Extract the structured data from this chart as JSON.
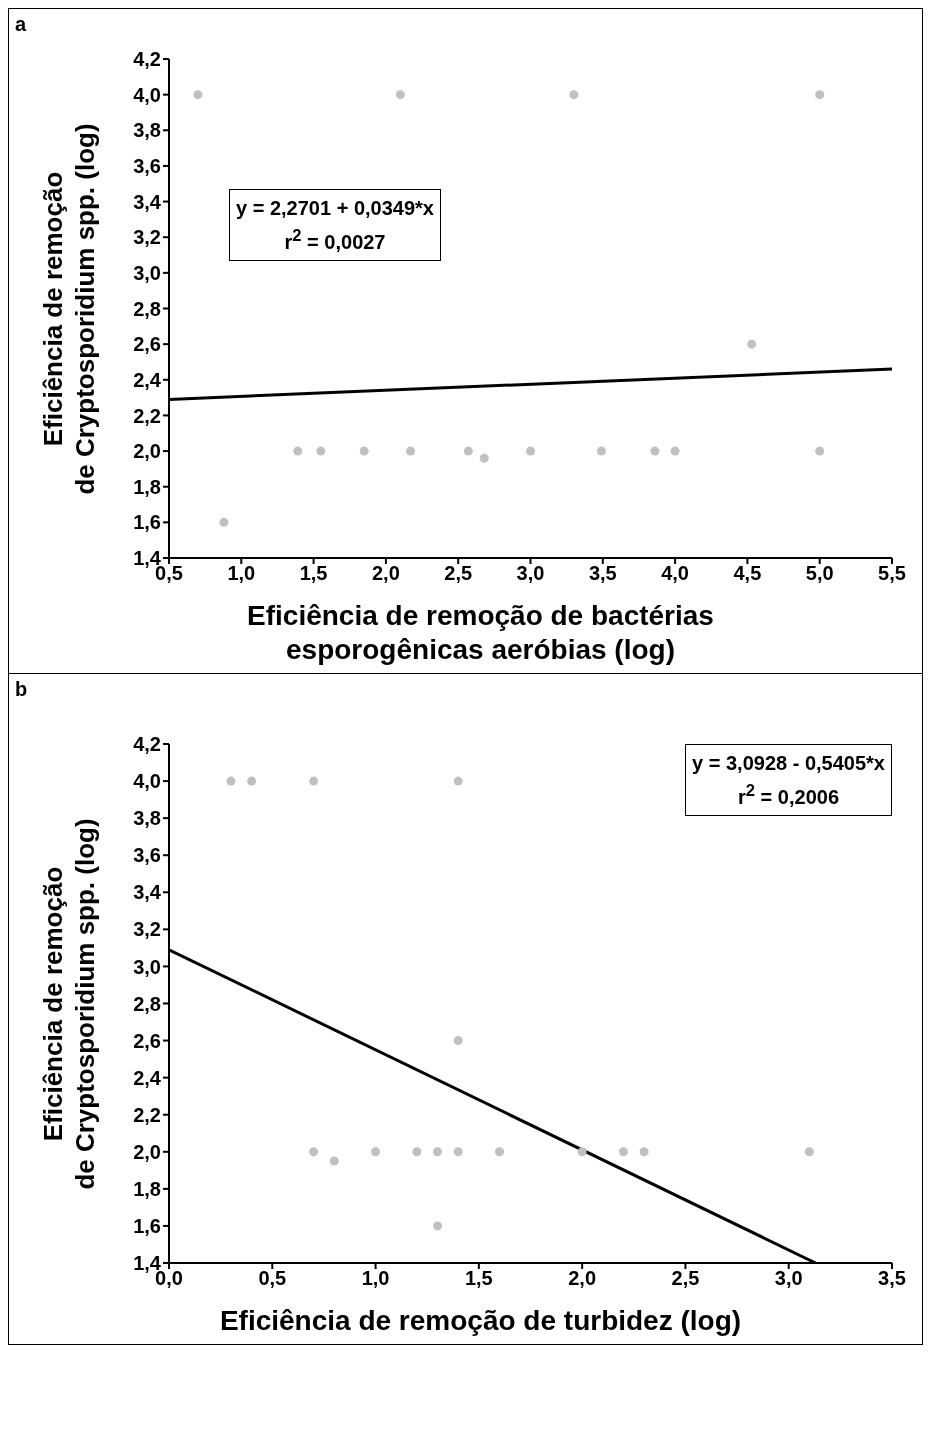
{
  "chart_data": [
    {
      "type": "scatter",
      "title": "a",
      "xlabel": "Eficiência de remoção de bactérias esporogênicas aeróbias (log)",
      "ylabel": "Eficiência de remoção de Cryptosporidium spp. (log)",
      "grid": false,
      "legend": false,
      "xlim": [
        0.5,
        5.5
      ],
      "xticks": [
        {
          "value": 0.5,
          "label": "0,5"
        },
        {
          "value": 1,
          "label": "1,0"
        },
        {
          "value": 1.5,
          "label": "1,5"
        },
        {
          "value": 2,
          "label": "2,0"
        },
        {
          "value": 2.5,
          "label": "2,5"
        },
        {
          "value": 3,
          "label": "3,0"
        },
        {
          "value": 3.5,
          "label": "3,5"
        },
        {
          "value": 4,
          "label": "4,0"
        },
        {
          "value": 4.5,
          "label": "4,5"
        },
        {
          "value": 5,
          "label": "5,0"
        },
        {
          "value": 5.5,
          "label": "5,5"
        }
      ],
      "ylim": [
        1.4,
        4.2
      ],
      "yticks": [
        {
          "value": 1.4,
          "label": "1,4"
        },
        {
          "value": 1.6,
          "label": "1,6"
        },
        {
          "value": 1.8,
          "label": "1,8"
        },
        {
          "value": 2,
          "label": "2,0"
        },
        {
          "value": 2.2,
          "label": "2,2"
        },
        {
          "value": 2.4,
          "label": "2,4"
        },
        {
          "value": 2.6,
          "label": "2,6"
        },
        {
          "value": 2.8,
          "label": "2,8"
        },
        {
          "value": 3,
          "label": "3,0"
        },
        {
          "value": 3.2,
          "label": "3,2"
        },
        {
          "value": 3.4,
          "label": "3,4"
        },
        {
          "value": 3.6,
          "label": "3,6"
        },
        {
          "value": 3.8,
          "label": "3,8"
        },
        {
          "value": 4,
          "label": "4,0"
        },
        {
          "value": 4.2,
          "label": "4,2"
        }
      ],
      "series": [
        {
          "marker": "circle",
          "color": "#c0c0c0",
          "x": [
            0.7,
            2.1,
            3.3,
            5.0,
            4.53,
            0.88,
            1.39,
            1.55,
            1.85,
            2.17,
            2.57,
            2.68,
            3.0,
            3.49,
            3.86,
            4.0,
            5.0
          ],
          "values": [
            4.0,
            4.0,
            4.0,
            4.0,
            2.6,
            1.6,
            2.0,
            2.0,
            2.0,
            2.0,
            2.0,
            1.96,
            2.0,
            2.0,
            2.0,
            2.0,
            2.0
          ]
        },
        {
          "type": "line",
          "color": "#000000",
          "x": [
            0.5,
            5.5
          ],
          "values": [
            2.29,
            2.46
          ]
        }
      ],
      "annotations": [
        "y = 2,2701 + 0,0349*x\nr$^{2}$ = 0,0027"
      ]
    },
    {
      "type": "scatter",
      "title": "b",
      "xlabel": "Eficiência de remoção de turbidez (log)",
      "ylabel": "Eficiência de remoção de Cryptosporidium spp. (log)",
      "grid": false,
      "legend": false,
      "xlim": [
        0,
        3.5
      ],
      "xticks": [
        {
          "value": 0,
          "label": "0,0"
        },
        {
          "value": 0.5,
          "label": "0,5"
        },
        {
          "value": 1,
          "label": "1,0"
        },
        {
          "value": 1.5,
          "label": "1,5"
        },
        {
          "value": 2,
          "label": "2,0"
        },
        {
          "value": 2.5,
          "label": "2,5"
        },
        {
          "value": 3,
          "label": "3,0"
        },
        {
          "value": 3.5,
          "label": "3,5"
        }
      ],
      "ylim": [
        1.4,
        4.2
      ],
      "yticks": [
        {
          "value": 1.4,
          "label": "1,4"
        },
        {
          "value": 1.6,
          "label": "1,6"
        },
        {
          "value": 1.8,
          "label": "1,8"
        },
        {
          "value": 2,
          "label": "2,0"
        },
        {
          "value": 2.2,
          "label": "2,2"
        },
        {
          "value": 2.4,
          "label": "2,4"
        },
        {
          "value": 2.6,
          "label": "2,6"
        },
        {
          "value": 2.8,
          "label": "2,8"
        },
        {
          "value": 3,
          "label": "3,0"
        },
        {
          "value": 3.2,
          "label": "3,2"
        },
        {
          "value": 3.4,
          "label": "3,4"
        },
        {
          "value": 3.6,
          "label": "3,6"
        },
        {
          "value": 3.8,
          "label": "3,8"
        },
        {
          "value": 4,
          "label": "4,0"
        },
        {
          "value": 4.2,
          "label": "4,2"
        }
      ],
      "series": [
        {
          "marker": "circle",
          "color": "#c0c0c0",
          "x": [
            0.3,
            0.4,
            0.7,
            1.4,
            1.4,
            0.7,
            0.8,
            1.0,
            1.2,
            1.3,
            1.4,
            1.6,
            2.0,
            2.2,
            2.3,
            3.1,
            1.3
          ],
          "values": [
            4.0,
            4.0,
            4.0,
            4.0,
            2.6,
            2.0,
            1.95,
            2.0,
            2.0,
            2.0,
            2.0,
            2.0,
            2.0,
            2.0,
            2.0,
            2.0,
            1.6
          ]
        },
        {
          "type": "line",
          "color": "#000000",
          "x": [
            0,
            3.13
          ],
          "values": [
            3.09,
            1.4
          ]
        }
      ],
      "annotations": [
        "y = 3,0928 - 0,5405*x\nr$^{2}$ = 0,2006"
      ]
    }
  ]
}
